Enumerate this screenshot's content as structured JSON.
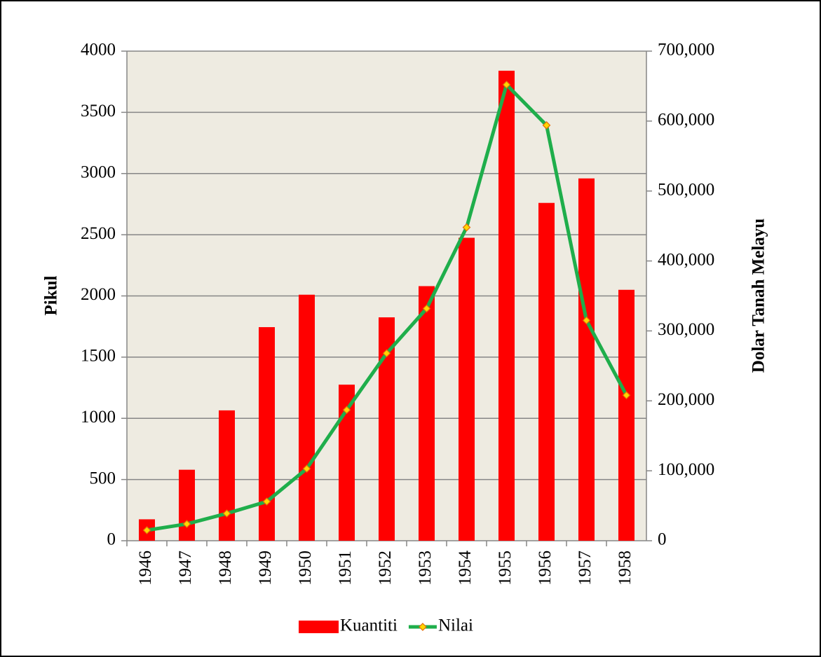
{
  "chart_data": {
    "type": "combo",
    "categories": [
      "1946",
      "1947",
      "1948",
      "1949",
      "1950",
      "1951",
      "1952",
      "1953",
      "1954",
      "1955",
      "1956",
      "1957",
      "1958"
    ],
    "series": [
      {
        "name": "Kuantiti",
        "type": "bar",
        "color": "#ff0000",
        "axis": "y",
        "values": [
          175,
          580,
          1065,
          1745,
          2010,
          1275,
          1825,
          2080,
          2475,
          3840,
          2760,
          2960,
          2050
        ]
      },
      {
        "name": "Nilai",
        "type": "line",
        "color": "#1fae4b",
        "marker_color": "#ffd700",
        "marker_edge": "#e46c0a",
        "axis": "y2",
        "values": [
          15000,
          24000,
          39000,
          56000,
          103000,
          187000,
          268000,
          332000,
          448000,
          652000,
          594000,
          315000,
          208000
        ]
      }
    ],
    "y_label": "Pikul",
    "y2_label": "Dolar Tanah Melayu",
    "ylim": [
      0,
      4000
    ],
    "yticks": [
      0,
      500,
      1000,
      1500,
      2000,
      2500,
      3000,
      3500,
      4000
    ],
    "y2lim": [
      0,
      700000
    ],
    "y2ticks": [
      0,
      {
        "value": 100000,
        "label": "100,000"
      },
      {
        "value": 200000,
        "label": "200,000"
      },
      {
        "value": 300000,
        "label": "300,000"
      },
      {
        "value": 400000,
        "label": "400,000"
      },
      {
        "value": 500000,
        "label": "500,000"
      },
      {
        "value": 600000,
        "label": "600,000"
      },
      {
        "value": 700000,
        "label": "700,000"
      }
    ],
    "grid": true,
    "legend": "bottom",
    "plot_background": "#eeebe1"
  }
}
